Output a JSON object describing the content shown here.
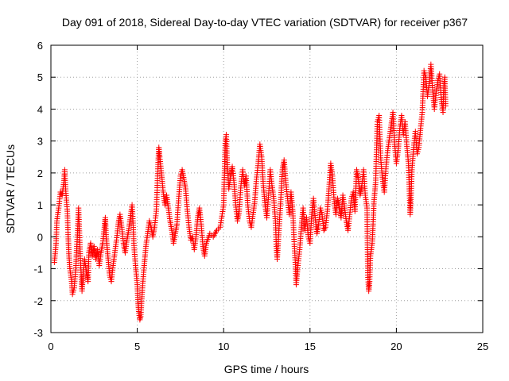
{
  "chart_data": {
    "type": "scatter",
    "title": "Day 091 of 2018, Sidereal Day-to-day VTEC variation (SDTVAR) for receiver p367",
    "xlabel": "GPS time / hours",
    "ylabel": "SDTVAR / TECUs",
    "xlim": [
      0,
      25
    ],
    "ylim": [
      -3,
      6
    ],
    "xticks": [
      0,
      5,
      10,
      15,
      20,
      25
    ],
    "yticks": [
      -3,
      -2,
      -1,
      0,
      1,
      2,
      3,
      4,
      5,
      6
    ],
    "grid": true,
    "marker": "+",
    "color": "#ff0000",
    "series": [
      {
        "name": "SDTVAR",
        "points": [
          [
            0.2,
            -0.8
          ],
          [
            0.3,
            -0.2
          ],
          [
            0.35,
            0.5
          ],
          [
            0.45,
            0.9
          ],
          [
            0.55,
            1.4
          ],
          [
            0.65,
            1.3
          ],
          [
            0.75,
            1.7
          ],
          [
            0.8,
            2.1
          ],
          [
            0.85,
            1.5
          ],
          [
            0.95,
            0.8
          ],
          [
            1.0,
            0.0
          ],
          [
            1.05,
            -0.6
          ],
          [
            1.1,
            -1.0
          ],
          [
            1.2,
            -1.4
          ],
          [
            1.25,
            -1.8
          ],
          [
            1.35,
            -1.6
          ],
          [
            1.45,
            -0.9
          ],
          [
            1.5,
            -0.3
          ],
          [
            1.55,
            0.2
          ],
          [
            1.6,
            0.9
          ],
          [
            1.7,
            -0.6
          ],
          [
            1.8,
            -1.7
          ],
          [
            1.85,
            -1.3
          ],
          [
            1.95,
            -0.7
          ],
          [
            2.05,
            -1.1
          ],
          [
            2.15,
            -1.4
          ],
          [
            2.2,
            -0.5
          ],
          [
            2.3,
            -0.2
          ],
          [
            2.4,
            -0.6
          ],
          [
            2.5,
            -0.3
          ],
          [
            2.6,
            -0.7
          ],
          [
            2.7,
            -0.4
          ],
          [
            2.8,
            -0.9
          ],
          [
            2.9,
            -0.5
          ],
          [
            3.0,
            -0.2
          ],
          [
            3.1,
            0.3
          ],
          [
            3.15,
            0.6
          ],
          [
            3.2,
            0.0
          ],
          [
            3.3,
            -0.6
          ],
          [
            3.4,
            -1.2
          ],
          [
            3.5,
            -1.4
          ],
          [
            3.6,
            -0.9
          ],
          [
            3.7,
            -0.5
          ],
          [
            3.8,
            -0.1
          ],
          [
            3.9,
            0.4
          ],
          [
            4.0,
            0.7
          ],
          [
            4.1,
            0.3
          ],
          [
            4.2,
            -0.2
          ],
          [
            4.3,
            -0.5
          ],
          [
            4.4,
            -0.1
          ],
          [
            4.5,
            0.2
          ],
          [
            4.6,
            0.6
          ],
          [
            4.7,
            1.0
          ],
          [
            4.75,
            0.5
          ],
          [
            4.8,
            -0.2
          ],
          [
            4.9,
            -0.9
          ],
          [
            5.0,
            -1.5
          ],
          [
            5.05,
            -2.1
          ],
          [
            5.1,
            -2.4
          ],
          [
            5.15,
            -2.6
          ],
          [
            5.2,
            -2.5
          ],
          [
            5.3,
            -1.6
          ],
          [
            5.4,
            -0.9
          ],
          [
            5.5,
            -0.3
          ],
          [
            5.6,
            0.1
          ],
          [
            5.7,
            0.5
          ],
          [
            5.8,
            0.3
          ],
          [
            5.9,
            0.0
          ],
          [
            6.0,
            0.3
          ],
          [
            6.1,
            0.8
          ],
          [
            6.2,
            2.2
          ],
          [
            6.25,
            2.8
          ],
          [
            6.3,
            2.5
          ],
          [
            6.4,
            2.0
          ],
          [
            6.5,
            1.4
          ],
          [
            6.6,
            1.0
          ],
          [
            6.7,
            1.3
          ],
          [
            6.8,
            0.9
          ],
          [
            6.9,
            0.5
          ],
          [
            7.0,
            0.2
          ],
          [
            7.1,
            -0.2
          ],
          [
            7.2,
            0.1
          ],
          [
            7.3,
            0.4
          ],
          [
            7.4,
            1.2
          ],
          [
            7.5,
            1.9
          ],
          [
            7.6,
            2.1
          ],
          [
            7.7,
            1.8
          ],
          [
            7.8,
            1.5
          ],
          [
            7.9,
            0.8
          ],
          [
            8.0,
            0.3
          ],
          [
            8.1,
            -0.1
          ],
          [
            8.2,
            0.0
          ],
          [
            8.3,
            -0.4
          ],
          [
            8.4,
            0.0
          ],
          [
            8.5,
            0.6
          ],
          [
            8.6,
            0.9
          ],
          [
            8.7,
            0.4
          ],
          [
            8.8,
            -0.3
          ],
          [
            8.9,
            -0.6
          ],
          [
            9.0,
            -0.2
          ],
          [
            9.2,
            0.1
          ],
          [
            9.4,
            0.0
          ],
          [
            9.6,
            0.2
          ],
          [
            9.8,
            0.3
          ],
          [
            10.0,
            1.0
          ],
          [
            10.05,
            2.0
          ],
          [
            10.1,
            3.0
          ],
          [
            10.15,
            3.2
          ],
          [
            10.2,
            2.4
          ],
          [
            10.3,
            1.5
          ],
          [
            10.4,
            1.9
          ],
          [
            10.5,
            2.2
          ],
          [
            10.6,
            1.7
          ],
          [
            10.7,
            1.0
          ],
          [
            10.8,
            0.5
          ],
          [
            10.9,
            0.8
          ],
          [
            11.0,
            1.6
          ],
          [
            11.1,
            2.1
          ],
          [
            11.2,
            1.6
          ],
          [
            11.3,
            1.9
          ],
          [
            11.4,
            1.0
          ],
          [
            11.5,
            0.5
          ],
          [
            11.6,
            0.3
          ],
          [
            11.7,
            0.7
          ],
          [
            11.8,
            1.1
          ],
          [
            11.9,
            1.8
          ],
          [
            12.0,
            2.3
          ],
          [
            12.1,
            2.9
          ],
          [
            12.2,
            2.5
          ],
          [
            12.3,
            1.6
          ],
          [
            12.4,
            1.0
          ],
          [
            12.5,
            0.6
          ],
          [
            12.6,
            1.3
          ],
          [
            12.7,
            2.1
          ],
          [
            12.8,
            1.6
          ],
          [
            12.9,
            1.2
          ],
          [
            13.0,
            0.5
          ],
          [
            13.05,
            -0.3
          ],
          [
            13.1,
            -0.7
          ],
          [
            13.2,
            0.2
          ],
          [
            13.3,
            1.1
          ],
          [
            13.4,
            2.1
          ],
          [
            13.5,
            2.4
          ],
          [
            13.6,
            1.7
          ],
          [
            13.7,
            1.2
          ],
          [
            13.8,
            0.7
          ],
          [
            13.9,
            1.4
          ],
          [
            14.0,
            0.8
          ],
          [
            14.1,
            -0.3
          ],
          [
            14.15,
            -0.8
          ],
          [
            14.2,
            -1.5
          ],
          [
            14.3,
            -0.9
          ],
          [
            14.4,
            -0.4
          ],
          [
            14.5,
            0.3
          ],
          [
            14.6,
            0.9
          ],
          [
            14.7,
            0.2
          ],
          [
            14.8,
            0.6
          ],
          [
            14.9,
            0.0
          ],
          [
            15.0,
            -0.2
          ],
          [
            15.1,
            0.7
          ],
          [
            15.2,
            1.2
          ],
          [
            15.3,
            0.6
          ],
          [
            15.4,
            0.1
          ],
          [
            15.5,
            0.4
          ],
          [
            15.6,
            0.9
          ],
          [
            15.7,
            0.7
          ],
          [
            15.8,
            0.2
          ],
          [
            15.9,
            0.3
          ],
          [
            16.0,
            0.8
          ],
          [
            16.1,
            1.5
          ],
          [
            16.2,
            2.3
          ],
          [
            16.3,
            1.9
          ],
          [
            16.4,
            1.1
          ],
          [
            16.5,
            0.7
          ],
          [
            16.6,
            1.2
          ],
          [
            16.7,
            0.9
          ],
          [
            16.8,
            0.6
          ],
          [
            16.9,
            1.3
          ],
          [
            17.0,
            0.9
          ],
          [
            17.1,
            0.5
          ],
          [
            17.2,
            0.2
          ],
          [
            17.3,
            0.7
          ],
          [
            17.4,
            1.2
          ],
          [
            17.5,
            1.4
          ],
          [
            17.6,
            0.8
          ],
          [
            17.7,
            2.1
          ],
          [
            17.8,
            1.8
          ],
          [
            17.9,
            1.3
          ],
          [
            18.0,
            1.6
          ],
          [
            18.1,
            2.1
          ],
          [
            18.2,
            1.3
          ],
          [
            18.3,
            0.9
          ],
          [
            18.35,
            -1.2
          ],
          [
            18.4,
            -1.7
          ],
          [
            18.45,
            -1.4
          ],
          [
            18.5,
            -0.6
          ],
          [
            18.6,
            -0.2
          ],
          [
            18.65,
            0.4
          ],
          [
            18.7,
            1.1
          ],
          [
            18.8,
            1.7
          ],
          [
            18.9,
            3.6
          ],
          [
            19.0,
            3.8
          ],
          [
            19.1,
            2.4
          ],
          [
            19.2,
            1.8
          ],
          [
            19.3,
            1.4
          ],
          [
            19.4,
            2.2
          ],
          [
            19.5,
            2.7
          ],
          [
            19.6,
            3.1
          ],
          [
            19.7,
            3.5
          ],
          [
            19.8,
            3.9
          ],
          [
            19.9,
            2.9
          ],
          [
            20.0,
            2.3
          ],
          [
            20.1,
            2.7
          ],
          [
            20.2,
            3.4
          ],
          [
            20.3,
            3.8
          ],
          [
            20.4,
            3.2
          ],
          [
            20.5,
            3.6
          ],
          [
            20.6,
            2.9
          ],
          [
            20.7,
            2.3
          ],
          [
            20.75,
            1.5
          ],
          [
            20.8,
            0.7
          ],
          [
            20.85,
            1.3
          ],
          [
            20.9,
            2.1
          ],
          [
            21.0,
            2.8
          ],
          [
            21.1,
            3.3
          ],
          [
            21.2,
            2.6
          ],
          [
            21.3,
            2.8
          ],
          [
            21.4,
            3.4
          ],
          [
            21.5,
            3.9
          ],
          [
            21.6,
            5.2
          ],
          [
            21.7,
            5.0
          ],
          [
            21.8,
            4.4
          ],
          [
            21.9,
            4.8
          ],
          [
            22.0,
            5.4
          ],
          [
            22.1,
            4.6
          ],
          [
            22.2,
            4.0
          ],
          [
            22.3,
            4.5
          ],
          [
            22.4,
            4.9
          ],
          [
            22.5,
            5.1
          ],
          [
            22.6,
            4.3
          ],
          [
            22.7,
            3.9
          ],
          [
            22.75,
            4.8
          ],
          [
            22.8,
            5.0
          ],
          [
            22.85,
            4.1
          ]
        ]
      }
    ]
  }
}
